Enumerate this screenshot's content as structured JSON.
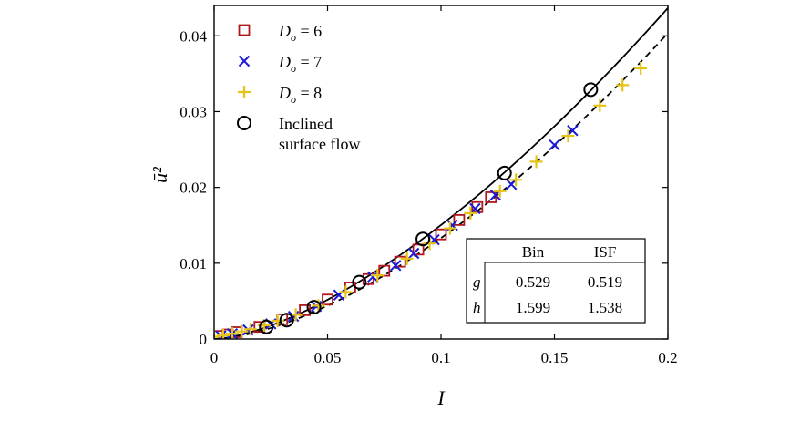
{
  "chart_data": {
    "type": "scatter",
    "title": "",
    "xlabel": "I",
    "ylabel": "ū²",
    "xlim": [
      0,
      0.2
    ],
    "ylim": [
      0,
      0.044
    ],
    "x_ticks": [
      0,
      0.05,
      0.1,
      0.15,
      0.2
    ],
    "x_tick_labels": [
      "0",
      "0.05",
      "0.1",
      "0.15",
      "0.2"
    ],
    "y_ticks": [
      0,
      0.01,
      0.02,
      0.03,
      0.04
    ],
    "y_tick_labels": [
      "0",
      "0.01",
      "0.02",
      "0.03",
      "0.04"
    ],
    "grid": false,
    "legend_position": "top-left",
    "series": [
      {
        "name": "Do = 6",
        "legend_main": "D",
        "legend_sub": "o",
        "legend_suffix": " = 6",
        "marker": "square",
        "color": "#b0171f",
        "points": [
          [
            0.002,
            0.0004
          ],
          [
            0.006,
            0.0006
          ],
          [
            0.01,
            0.0009
          ],
          [
            0.02,
            0.0016
          ],
          [
            0.03,
            0.0026
          ],
          [
            0.04,
            0.0038
          ],
          [
            0.05,
            0.0052
          ],
          [
            0.06,
            0.0068
          ],
          [
            0.068,
            0.0079
          ],
          [
            0.075,
            0.009
          ],
          [
            0.082,
            0.0102
          ],
          [
            0.09,
            0.0118
          ],
          [
            0.1,
            0.0138
          ],
          [
            0.108,
            0.0157
          ],
          [
            0.116,
            0.0174
          ],
          [
            0.122,
            0.0187
          ]
        ]
      },
      {
        "name": "Do = 7",
        "legend_main": "D",
        "legend_sub": "o",
        "legend_suffix": " = 7",
        "marker": "x",
        "color": "#1a1adb",
        "points": [
          [
            0.003,
            0.0004
          ],
          [
            0.008,
            0.0007
          ],
          [
            0.015,
            0.0012
          ],
          [
            0.025,
            0.002
          ],
          [
            0.035,
            0.003
          ],
          [
            0.045,
            0.0043
          ],
          [
            0.055,
            0.0058
          ],
          [
            0.07,
            0.0082
          ],
          [
            0.08,
            0.0097
          ],
          [
            0.088,
            0.0113
          ],
          [
            0.097,
            0.0131
          ],
          [
            0.105,
            0.015
          ],
          [
            0.115,
            0.0172
          ],
          [
            0.124,
            0.019
          ],
          [
            0.131,
            0.0204
          ],
          [
            0.15,
            0.0256
          ],
          [
            0.158,
            0.0275
          ]
        ]
      },
      {
        "name": "Do = 8",
        "legend_main": "D",
        "legend_sub": "o",
        "legend_suffix": " = 8",
        "marker": "plus",
        "color": "#e6c317",
        "points": [
          [
            0.0,
            0.0003
          ],
          [
            0.004,
            0.0005
          ],
          [
            0.008,
            0.0007
          ],
          [
            0.012,
            0.001
          ],
          [
            0.016,
            0.0013
          ],
          [
            0.022,
            0.0018
          ],
          [
            0.028,
            0.0024
          ],
          [
            0.036,
            0.0032
          ],
          [
            0.046,
            0.0044
          ],
          [
            0.058,
            0.0062
          ],
          [
            0.072,
            0.0084
          ],
          [
            0.085,
            0.0106
          ],
          [
            0.095,
            0.0126
          ],
          [
            0.104,
            0.0146
          ],
          [
            0.113,
            0.0166
          ],
          [
            0.126,
            0.0195
          ],
          [
            0.133,
            0.021
          ],
          [
            0.142,
            0.0234
          ],
          [
            0.156,
            0.0268
          ],
          [
            0.17,
            0.0308
          ],
          [
            0.18,
            0.0335
          ],
          [
            0.188,
            0.0357
          ]
        ]
      },
      {
        "name": "Inclined surface flow",
        "legend_lines": [
          "Inclined",
          "surface flow"
        ],
        "marker": "circle",
        "color": "#000000",
        "points": [
          [
            0.023,
            0.0016
          ],
          [
            0.032,
            0.0025
          ],
          [
            0.044,
            0.0042
          ],
          [
            0.064,
            0.0075
          ],
          [
            0.092,
            0.0132
          ],
          [
            0.128,
            0.0219
          ],
          [
            0.166,
            0.0329
          ]
        ]
      }
    ],
    "fits": [
      {
        "label": "ISF",
        "g": 0.519,
        "h": 1.538,
        "style": "solid"
      },
      {
        "label": "Bin",
        "g": 0.529,
        "h": 1.599,
        "style": "dashed"
      }
    ],
    "table": {
      "headers": [
        "",
        "Bin",
        "ISF"
      ],
      "rows": [
        {
          "label": "g",
          "bin": "0.529",
          "isf": "0.519"
        },
        {
          "label": "h",
          "bin": "1.599",
          "isf": "1.538"
        }
      ]
    }
  }
}
